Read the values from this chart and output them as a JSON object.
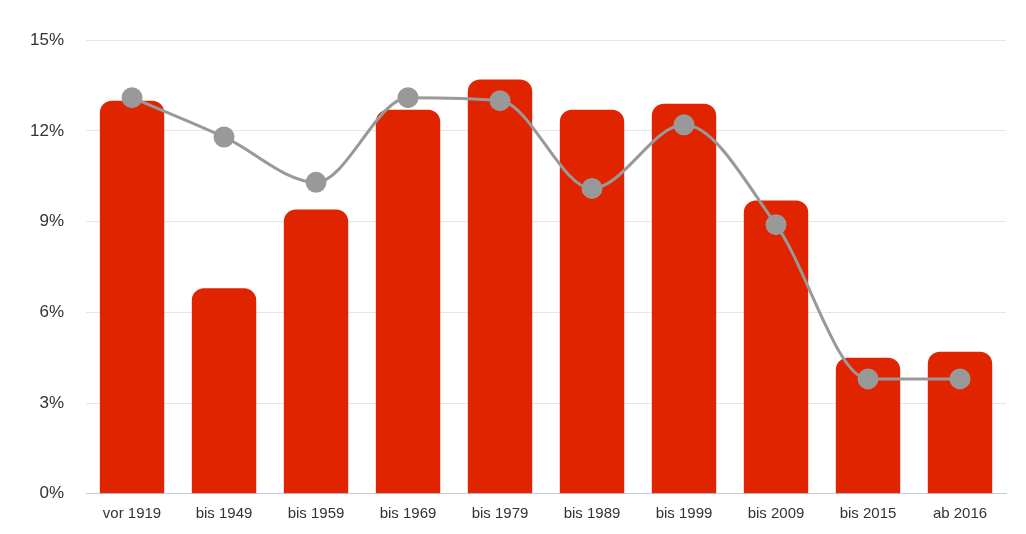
{
  "chart_data": {
    "type": "bar",
    "categories": [
      "vor 1919",
      "bis 1949",
      "bis 1959",
      "bis 1969",
      "bis 1979",
      "bis 1989",
      "bis 1999",
      "bis 2009",
      "bis 2015",
      "ab 2016"
    ],
    "series": [
      {
        "color": "#e02400",
        "values": [
          13.0,
          6.8,
          9.4,
          12.7,
          13.7,
          12.7,
          12.9,
          9.7,
          4.5,
          4.7
        ]
      },
      {
        "type": "line",
        "color": "#999999",
        "marker": "circle",
        "values": [
          13.1,
          11.8,
          10.3,
          13.1,
          13.0,
          10.1,
          12.2,
          8.9,
          3.8,
          3.8
        ]
      }
    ],
    "ylim": [
      0,
      15
    ],
    "yticks": [
      {
        "value": 0,
        "label": "0%"
      },
      {
        "value": 3,
        "label": "3%"
      },
      {
        "value": 6,
        "label": "6%"
      },
      {
        "value": 9,
        "label": "9%"
      },
      {
        "value": 12,
        "label": "12%"
      },
      {
        "value": 15,
        "label": "15%"
      }
    ],
    "grid": "y",
    "legend": false
  }
}
